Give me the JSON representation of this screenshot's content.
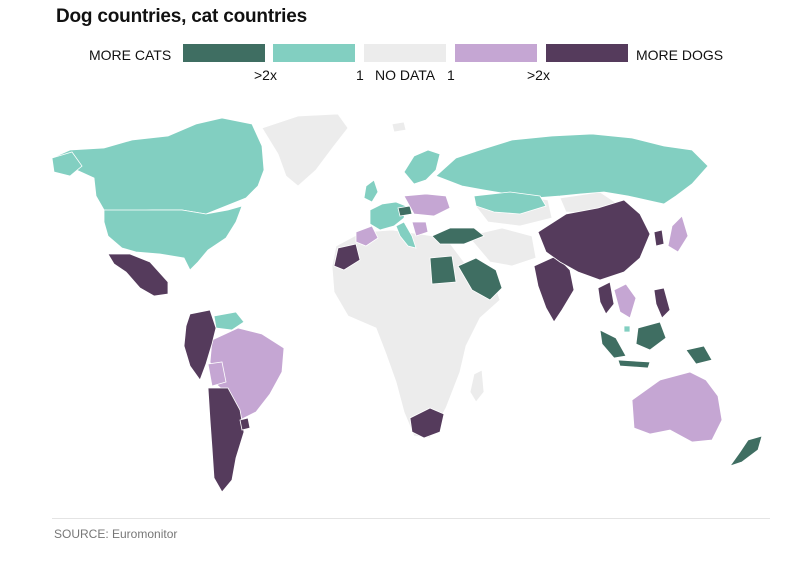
{
  "title": "Dog countries, cat countries",
  "legend": {
    "left_label": "MORE CATS",
    "right_label": "MORE DOGS",
    "ticks": [
      ">2x",
      "1",
      "NO DATA",
      "1",
      ">2x"
    ],
    "swatches": [
      {
        "name": "much-more-cats",
        "color": "#3f6e62"
      },
      {
        "name": "more-cats",
        "color": "#82cfc1"
      },
      {
        "name": "no-data",
        "color": "#ececec"
      },
      {
        "name": "more-dogs",
        "color": "#c5a6d3"
      },
      {
        "name": "much-more-dogs",
        "color": "#553b5c"
      }
    ]
  },
  "colors": {
    "much_more_cats": "#3f6e62",
    "more_cats": "#82cfc1",
    "no_data": "#ececec",
    "more_dogs": "#c5a6d3",
    "much_more_dogs": "#553b5c"
  },
  "regions": {
    "much_more_cats": [
      "Turkey",
      "Egypt",
      "Saudi Arabia",
      "Austria",
      "Indonesia",
      "Malaysia",
      "Papua New Guinea",
      "New Zealand"
    ],
    "more_cats": [
      "Canada",
      "United States",
      "Russia",
      "Kazakhstan",
      "Germany",
      "France",
      "Italy",
      "United Kingdom",
      "Poland",
      "Sweden",
      "Norway",
      "Finland",
      "Switzerland",
      "Singapore",
      "Venezuela"
    ],
    "more_dogs": [
      "Brazil",
      "Bolivia",
      "Australia",
      "Japan",
      "Thailand",
      "Vietnam",
      "Spain",
      "Ukraine",
      "Czech Republic",
      "Hungary",
      "Romania",
      "Portugal"
    ],
    "much_more_dogs": [
      "Mexico",
      "Colombia",
      "Ecuador",
      "Peru",
      "Chile",
      "Argentina",
      "Uruguay",
      "Morocco",
      "India",
      "China",
      "South Africa",
      "Philippines",
      "Myanmar",
      "South Korea",
      "Taiwan"
    ],
    "no_data": [
      "Greenland",
      "Africa (most)",
      "Middle East (most)",
      "Central Asia",
      "Mongolia"
    ]
  },
  "source": "SOURCE: Euromonitor"
}
